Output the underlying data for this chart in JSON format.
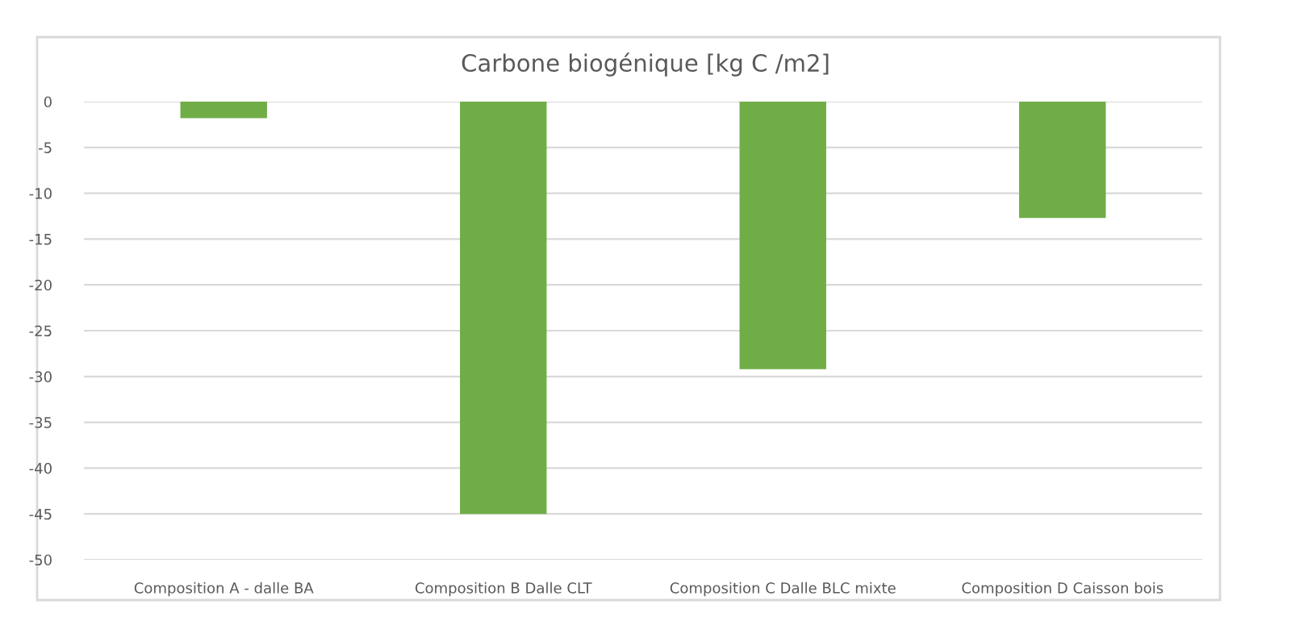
{
  "chart_data": {
    "type": "bar",
    "title": "Carbone biogénique [kg C /m2]",
    "categories": [
      "Composition A - dalle BA",
      "Composition B Dalle CLT",
      "Composition C Dalle BLC mixte",
      "Composition D Caisson bois"
    ],
    "values": [
      -1.8,
      -45,
      -29.2,
      -12.7
    ],
    "color": "#70ad47",
    "ylim": [
      -50,
      0
    ],
    "yticks": [
      -50,
      -45,
      -40,
      -35,
      -30,
      -25,
      -20,
      -15,
      -10,
      -5,
      0
    ],
    "grid": "y",
    "legend": false
  }
}
